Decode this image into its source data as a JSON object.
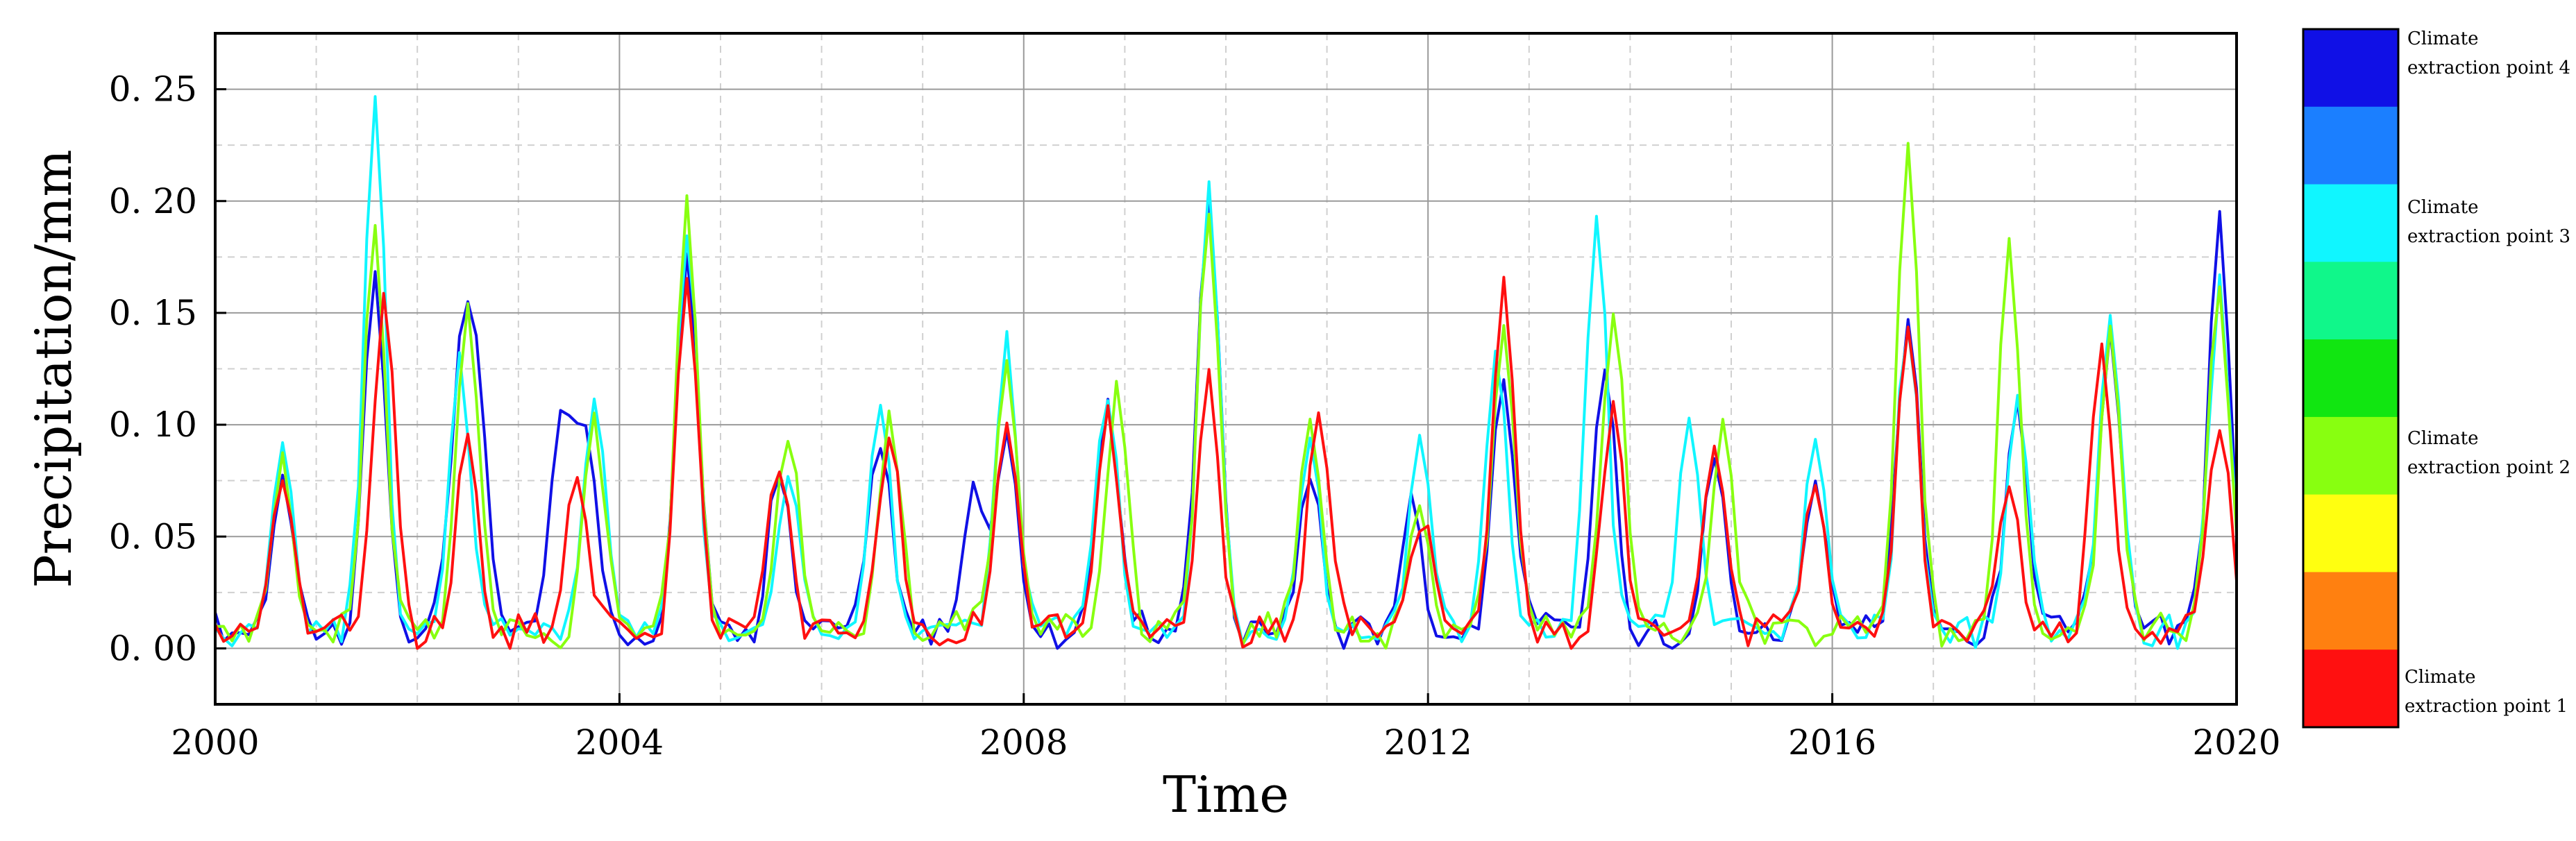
{
  "chart_data": {
    "type": "line",
    "title": "",
    "xlabel": "Time",
    "ylabel": "Precipitation/mm",
    "xlim": [
      2000,
      2020
    ],
    "ylim": [
      -0.025,
      0.275
    ],
    "x_ticks": [
      2000,
      2004,
      2008,
      2012,
      2016,
      2020
    ],
    "y_ticks": [
      0.0,
      0.05,
      0.1,
      0.15,
      0.2,
      0.25
    ],
    "x_tick_labels": [
      "2000",
      "2004",
      "2008",
      "2012",
      "2016",
      "2020"
    ],
    "y_tick_labels": [
      "0. 00",
      "0. 05",
      "0. 10",
      "0. 15",
      "0. 20",
      "0. 25"
    ],
    "grid": "on",
    "legend_placement": "right (colorbar)",
    "colorbar": {
      "colors": [
        "#1010e6",
        "#1b7fff",
        "#10f6ff",
        "#10f78a",
        "#11e611",
        "#88ff10",
        "#ffff10",
        "#ff8010",
        "#ff1010"
      ],
      "labels": [
        {
          "line1": "Climate",
          "line2": "extraction point 4"
        },
        {
          "line1": "Climate",
          "line2": "extraction point 3"
        },
        {
          "line1": "Climate",
          "line2": "extraction point 2"
        },
        {
          "line1": "Climate",
          "line2": "extraction point 1"
        }
      ]
    },
    "series": [
      {
        "name": "Climate extraction point 4",
        "color": "#1010e6",
        "peaks": [
          [
            2000.67,
            0.07
          ],
          [
            2001.58,
            0.16
          ],
          [
            2002.42,
            0.094
          ],
          [
            2002.58,
            0.109
          ],
          [
            2003.42,
            0.095
          ],
          [
            2003.67,
            0.085
          ],
          [
            2004.67,
            0.175
          ],
          [
            2005.58,
            0.072
          ],
          [
            2006.58,
            0.088
          ],
          [
            2007.5,
            0.062
          ],
          [
            2007.83,
            0.089
          ],
          [
            2008.83,
            0.106
          ],
          [
            2009.83,
            0.199
          ],
          [
            2010.83,
            0.073
          ],
          [
            2011.83,
            0.058
          ],
          [
            2012.75,
            0.117
          ],
          [
            2013.75,
            0.121
          ],
          [
            2014.83,
            0.078
          ],
          [
            2015.83,
            0.071
          ],
          [
            2016.75,
            0.143
          ],
          [
            2017.83,
            0.103
          ],
          [
            2018.75,
            0.138
          ],
          [
            2019.83,
            0.188
          ]
        ]
      },
      {
        "name": "Climate extraction point 3",
        "color": "#10f6ff",
        "peaks": [
          [
            2000.67,
            0.084
          ],
          [
            2001.58,
            0.235
          ],
          [
            2002.42,
            0.122
          ],
          [
            2003.75,
            0.107
          ],
          [
            2004.67,
            0.18
          ],
          [
            2005.67,
            0.066
          ],
          [
            2006.58,
            0.103
          ],
          [
            2007.83,
            0.13
          ],
          [
            2008.83,
            0.108
          ],
          [
            2009.83,
            0.196
          ],
          [
            2010.83,
            0.09
          ],
          [
            2011.92,
            0.088
          ],
          [
            2012.67,
            0.127
          ],
          [
            2013.67,
            0.182
          ],
          [
            2014.58,
            0.094
          ],
          [
            2015.83,
            0.085
          ],
          [
            2016.75,
            0.137
          ],
          [
            2017.83,
            0.104
          ],
          [
            2018.75,
            0.135
          ],
          [
            2019.83,
            0.15
          ]
        ]
      },
      {
        "name": "Climate extraction point 2",
        "color": "#88ff10",
        "peaks": [
          [
            2000.67,
            0.075
          ],
          [
            2001.58,
            0.178
          ],
          [
            2002.5,
            0.151
          ],
          [
            2003.75,
            0.095
          ],
          [
            2004.67,
            0.195
          ],
          [
            2005.67,
            0.091
          ],
          [
            2006.67,
            0.097
          ],
          [
            2007.83,
            0.121
          ],
          [
            2008.92,
            0.11
          ],
          [
            2009.83,
            0.189
          ],
          [
            2010.83,
            0.093
          ],
          [
            2011.92,
            0.06
          ],
          [
            2012.75,
            0.136
          ],
          [
            2013.83,
            0.145
          ],
          [
            2014.92,
            0.091
          ],
          [
            2016.75,
            0.214
          ],
          [
            2017.75,
            0.169
          ],
          [
            2018.75,
            0.133
          ],
          [
            2019.83,
            0.155
          ]
        ]
      },
      {
        "name": "Climate extraction point 1",
        "color": "#ff1010",
        "peaks": [
          [
            2000.67,
            0.07
          ],
          [
            2001.67,
            0.153
          ],
          [
            2002.5,
            0.085
          ],
          [
            2003.58,
            0.075
          ],
          [
            2004.67,
            0.155
          ],
          [
            2005.58,
            0.073
          ],
          [
            2006.67,
            0.086
          ],
          [
            2007.83,
            0.089
          ],
          [
            2008.83,
            0.103
          ],
          [
            2009.83,
            0.115
          ],
          [
            2010.92,
            0.1
          ],
          [
            2011.92,
            0.052
          ],
          [
            2012.75,
            0.161
          ],
          [
            2013.83,
            0.103
          ],
          [
            2014.83,
            0.083
          ],
          [
            2015.83,
            0.059
          ],
          [
            2016.75,
            0.138
          ],
          [
            2017.75,
            0.062
          ],
          [
            2018.67,
            0.13
          ],
          [
            2019.83,
            0.093
          ]
        ]
      }
    ]
  }
}
